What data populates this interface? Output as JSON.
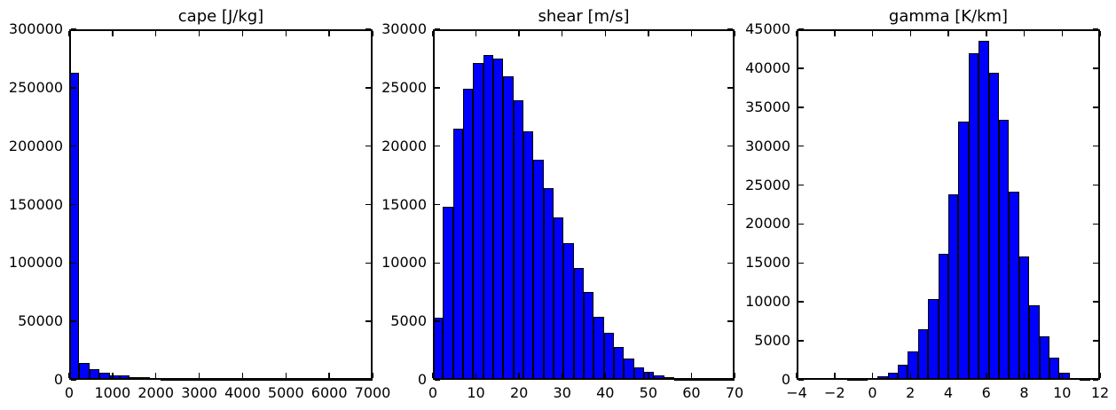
{
  "figure": {
    "background_color": "#ffffff",
    "text_color": "#000000"
  },
  "chart_data": [
    {
      "type": "bar",
      "title": "cape [J/kg]",
      "bar_color": "#0000ff",
      "bar_edge_color": "#000000",
      "xlim": [
        0,
        7000
      ],
      "ylim": [
        0,
        300000
      ],
      "xticks": [
        0,
        1000,
        2000,
        3000,
        4000,
        5000,
        6000,
        7000
      ],
      "xtick_labels": [
        "0",
        "1000",
        "2000",
        "3000",
        "4000",
        "5000",
        "6000",
        "7000"
      ],
      "yticks": [
        0,
        50000,
        100000,
        150000,
        200000,
        250000,
        300000
      ],
      "ytick_labels": [
        "0",
        "50000",
        "100000",
        "150000",
        "200000",
        "250000",
        "300000"
      ],
      "bins": {
        "start": 0,
        "width": 233.3333
      },
      "values": [
        263000,
        14800,
        9000,
        6100,
        4100,
        3500,
        2300,
        2200,
        1500,
        1000,
        700,
        450,
        300,
        200,
        120,
        80,
        50,
        35,
        25,
        18,
        12,
        8,
        6,
        4,
        3,
        2,
        2,
        1,
        1,
        1
      ]
    },
    {
      "type": "bar",
      "title": "shear [m/s]",
      "bar_color": "#0000ff",
      "bar_edge_color": "#000000",
      "xlim": [
        0,
        70
      ],
      "ylim": [
        0,
        30000
      ],
      "xticks": [
        0,
        10,
        20,
        30,
        40,
        50,
        60,
        70
      ],
      "xtick_labels": [
        "0",
        "10",
        "20",
        "30",
        "40",
        "50",
        "60",
        "70"
      ],
      "yticks": [
        0,
        5000,
        10000,
        15000,
        20000,
        25000,
        30000
      ],
      "ytick_labels": [
        "0",
        "5000",
        "10000",
        "15000",
        "20000",
        "25000",
        "30000"
      ],
      "bins": {
        "start": 0,
        "width": 2.3333
      },
      "values": [
        5300,
        14800,
        21500,
        24900,
        27100,
        27800,
        27500,
        26000,
        23900,
        21300,
        18800,
        16400,
        13900,
        11700,
        9600,
        7500,
        5400,
        4000,
        2800,
        1800,
        1100,
        650,
        380,
        200,
        100,
        50,
        25,
        10,
        5,
        2
      ]
    },
    {
      "type": "bar",
      "title": "gamma [K/km]",
      "bar_color": "#0000ff",
      "bar_edge_color": "#000000",
      "xlim": [
        -4,
        12
      ],
      "ylim": [
        0,
        45000
      ],
      "xticks": [
        -4,
        -2,
        0,
        2,
        4,
        6,
        8,
        10,
        12
      ],
      "xtick_labels": [
        "−4",
        "−2",
        "0",
        "2",
        "4",
        "6",
        "8",
        "10",
        "12"
      ],
      "yticks": [
        0,
        5000,
        10000,
        15000,
        20000,
        25000,
        30000,
        35000,
        40000,
        45000
      ],
      "ytick_labels": [
        "0",
        "5000",
        "10000",
        "15000",
        "20000",
        "25000",
        "30000",
        "35000",
        "40000",
        "45000"
      ],
      "bins": {
        "start": -4,
        "width": 0.53333
      },
      "values": [
        0,
        0,
        0,
        0,
        0,
        20,
        80,
        250,
        420,
        950,
        1900,
        3700,
        6500,
        10400,
        16200,
        23800,
        33100,
        41900,
        43500,
        39400,
        33400,
        24200,
        15800,
        9600,
        5600,
        2900,
        950,
        180,
        30,
        0
      ]
    }
  ]
}
